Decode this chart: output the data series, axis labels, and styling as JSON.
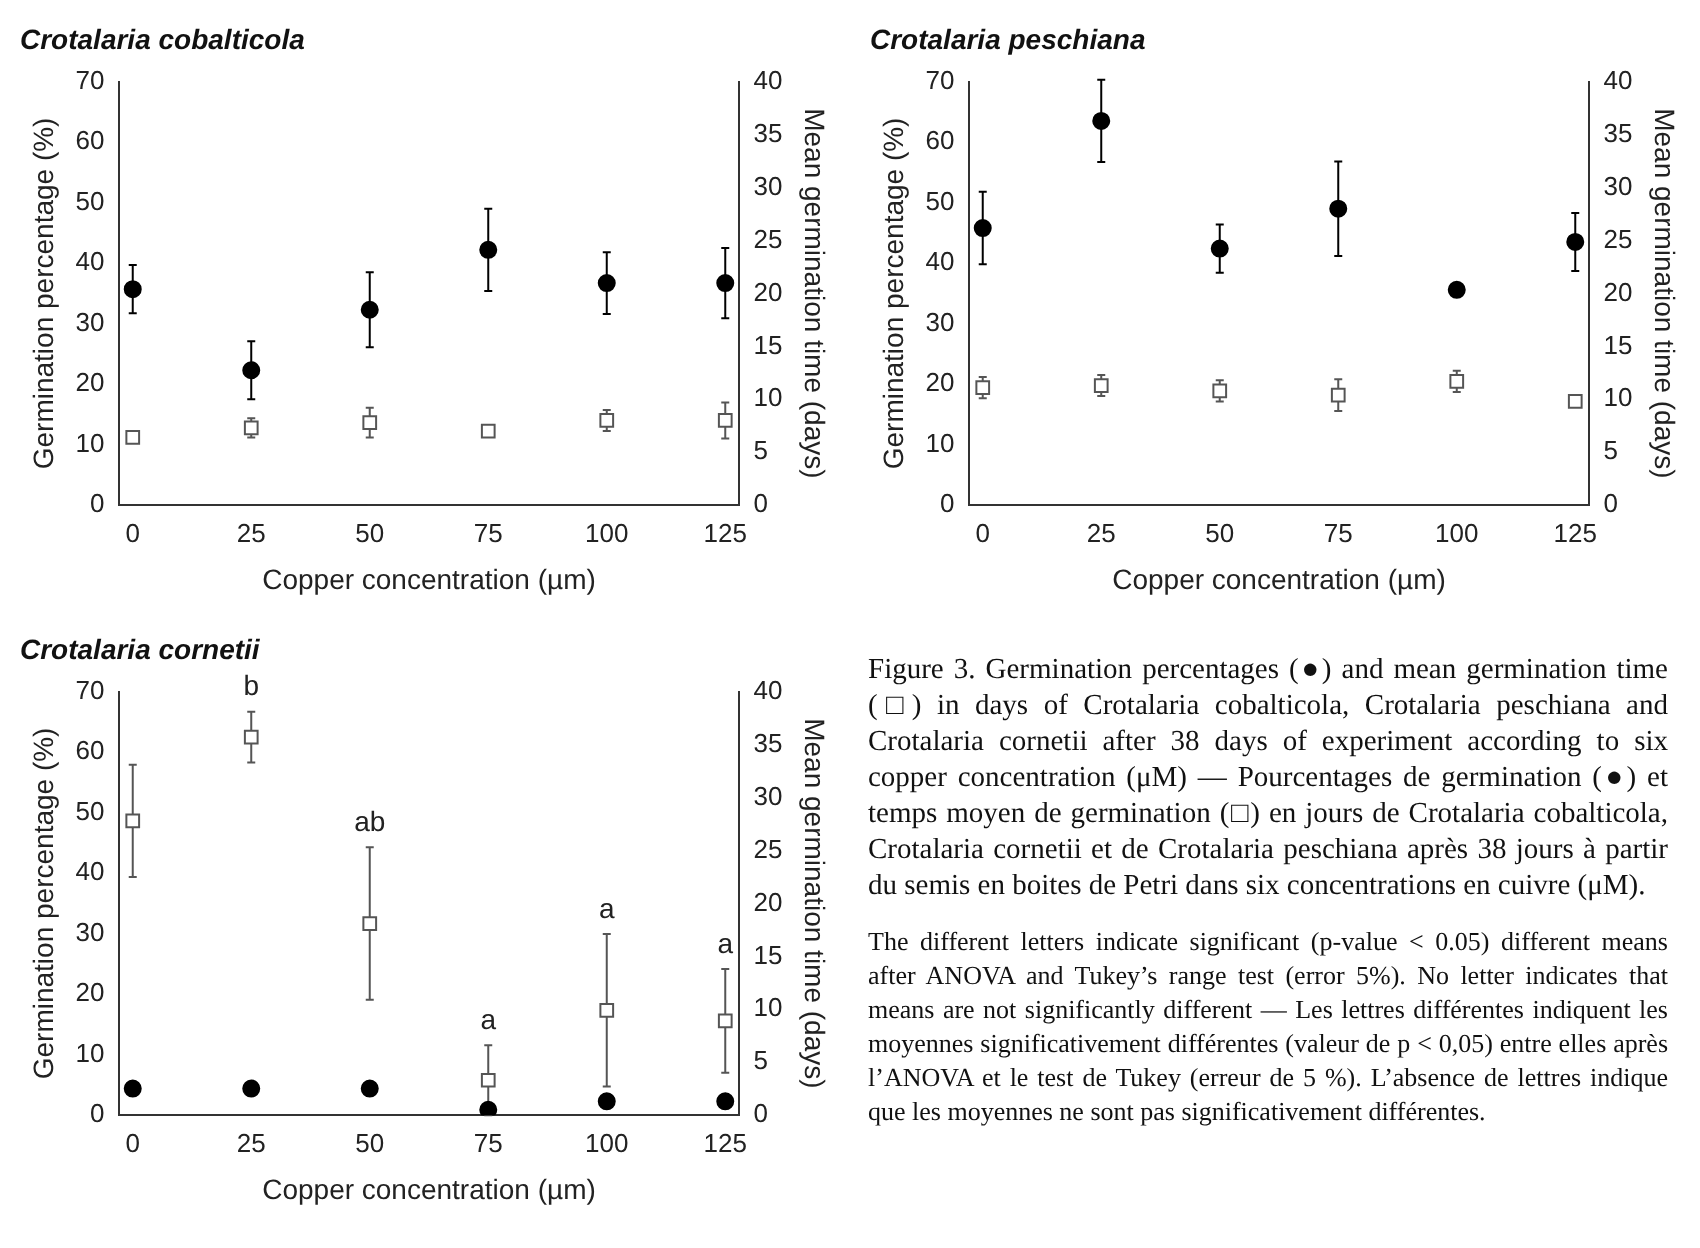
{
  "chart_data": [
    {
      "type": "scatter",
      "title": "Crotalaria cobalticola",
      "xlabel": "Copper concentration (µm)",
      "ylabel": "Germination percentage (%)",
      "y2label": "Mean germination time (days)",
      "x": [
        0,
        25,
        50,
        75,
        100,
        125
      ],
      "xlim": [
        -3,
        128
      ],
      "xticks": [
        0,
        25,
        50,
        75,
        100,
        125
      ],
      "ylim": [
        0,
        70
      ],
      "yticks": [
        0,
        10,
        20,
        30,
        40,
        50,
        60,
        70
      ],
      "y2lim": [
        0,
        40
      ],
      "y2ticks": [
        0,
        5,
        10,
        15,
        20,
        25,
        30,
        35,
        40
      ],
      "grid": false,
      "legend": false,
      "series": [
        {
          "color": "#000000",
          "marker": "circle",
          "values": [
            35.7,
            22.3,
            32.3,
            42.2,
            36.7,
            36.7
          ],
          "errors": [
            4,
            4.8,
            6.2,
            6.8,
            5.1,
            5.8
          ]
        },
        {
          "color": "#555555",
          "marker": "square",
          "axis": "y2",
          "values": [
            6.4,
            7.3,
            7.8,
            7.0,
            8.0,
            8.0
          ],
          "errors": [
            null,
            0.9,
            1.4,
            null,
            1,
            1.7
          ]
        }
      ]
    },
    {
      "type": "scatter",
      "title": "Crotalaria peschiana",
      "xlabel": "Copper concentration (µm)",
      "ylabel": "Germination percentage (%)",
      "y2label": "Mean germination time (days)",
      "x": [
        0,
        25,
        50,
        75,
        100,
        125
      ],
      "xlim": [
        -3,
        128
      ],
      "xticks": [
        0,
        25,
        50,
        75,
        100,
        125
      ],
      "ylim": [
        0,
        70
      ],
      "yticks": [
        0,
        10,
        20,
        30,
        40,
        50,
        60,
        70
      ],
      "y2lim": [
        0,
        40
      ],
      "y2ticks": [
        0,
        5,
        10,
        15,
        20,
        25,
        30,
        35,
        40
      ],
      "grid": false,
      "legend": false,
      "series": [
        {
          "color": "#000000",
          "marker": "circle",
          "values": [
            45.8,
            63.5,
            42.4,
            49,
            35.6,
            43.5
          ],
          "errors": [
            6,
            6.8,
            4,
            7.8,
            null,
            4.8
          ]
        },
        {
          "color": "#555555",
          "marker": "square",
          "axis": "y2",
          "values": [
            11.1,
            11.3,
            10.8,
            10.4,
            11.7,
            9.8
          ],
          "errors": [
            1,
            1,
            1,
            1.5,
            1,
            null
          ]
        }
      ]
    },
    {
      "type": "scatter",
      "title": "Crotalaria cornetii",
      "xlabel": "Copper concentration (µm)",
      "ylabel": "Germination percentage (%)",
      "y2label": "Mean germination time (days)",
      "x": [
        0,
        25,
        50,
        75,
        100,
        125
      ],
      "xlim": [
        -3,
        128
      ],
      "xticks": [
        0,
        25,
        50,
        75,
        100,
        125
      ],
      "ylim": [
        0,
        70
      ],
      "yticks": [
        0,
        10,
        20,
        30,
        40,
        50,
        60,
        70
      ],
      "y2lim": [
        0,
        40
      ],
      "y2ticks": [
        0,
        5,
        10,
        15,
        20,
        25,
        30,
        35,
        40
      ],
      "grid": false,
      "legend": false,
      "series": [
        {
          "color": "#000000",
          "marker": "circle",
          "values": [
            4.4,
            4.4,
            4.4,
            0.9,
            2.3,
            2.3
          ]
        },
        {
          "color": "#555555",
          "marker": "square",
          "axis": "y2",
          "values": [
            27.8,
            35.7,
            18.1,
            3.3,
            9.9,
            8.9
          ],
          "errors": [
            5.3,
            2.4,
            7.2,
            3.3,
            7.2,
            4.9
          ]
        }
      ],
      "annotations": [
        "b",
        "ab",
        "a",
        "a",
        "a"
      ]
    },
    {
      "type": "other",
      "annotations": [
        "Figure 3. Germination percentages (●) and mean germination time (□) in days of Crotalaria cobalticola, Crotalaria peschiana and Crotalaria cornetii after 38 days of experiment according to six copper concentration (μM) — Pourcentages de germination (●) et temps moyen de germination (□) en jours de Crotalaria cobalticola, Crotalaria cornetii et de Crotalaria peschiana après 38 jours à partir du semis en boites de Petri dans six concentrations en cuivre (μM).",
        "The different letters indicate significant (p-value < 0.05) different means after ANOVA and Tukey’s range test (error 5%). No letter indicates that means are not significantly different — Les lettres différentes indiquent les moyennes significativement différentes (valeur de p < 0,05) entre elles après l’ANOVA et le test de Tukey (erreur de 5 %). L’absence de lettres indique que les moyennes ne sont pas significativement différentes."
      ]
    }
  ]
}
